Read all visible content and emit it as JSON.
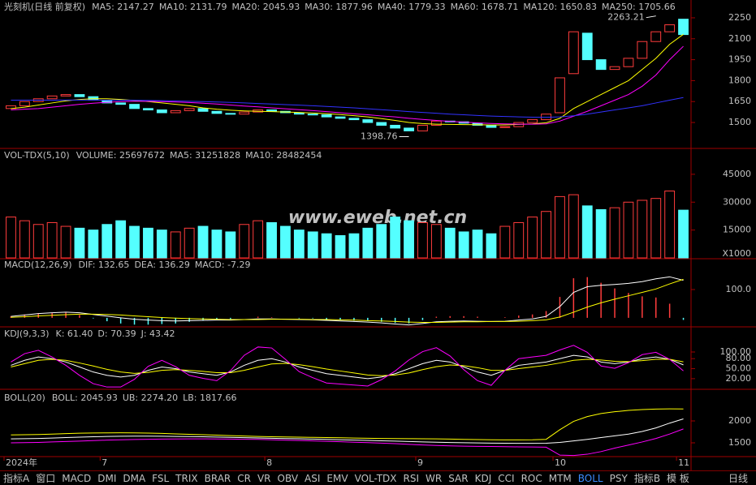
{
  "chart_data": [
    {
      "type": "candlestick",
      "title": "光刻机(日线 前复权)",
      "legend": [
        {
          "text": "MA5: 2147.27",
          "color": "#ffffff"
        },
        {
          "text": "MA10: 2131.79",
          "color": "#ffff00"
        },
        {
          "text": "MA20: 2045.93",
          "color": "#ff00ff"
        },
        {
          "text": "MA30: 1877.96",
          "color": "#00e600"
        },
        {
          "text": "MA40: 1779.33",
          "color": "#c0c0c0"
        },
        {
          "text": "MA60: 1678.71",
          "color": "#3232ff"
        },
        {
          "text": "MA120: 1650.83",
          "color": "#ffffff"
        },
        {
          "text": "MA250: 1705.66",
          "color": "#e6c04a"
        }
      ],
      "categories": [
        "2024年",
        null,
        null,
        null,
        null,
        null,
        null,
        "7",
        null,
        null,
        null,
        null,
        null,
        null,
        null,
        null,
        null,
        null,
        null,
        "8",
        null,
        null,
        null,
        null,
        null,
        null,
        null,
        null,
        null,
        null,
        "9",
        null,
        null,
        null,
        null,
        null,
        null,
        null,
        null,
        null,
        "10",
        null,
        null,
        null,
        null,
        null,
        null,
        null,
        null,
        "11"
      ],
      "open": [
        1600,
        1620,
        1650,
        1670,
        1690,
        1700,
        1685,
        1660,
        1640,
        1630,
        1600,
        1590,
        1570,
        1585,
        1600,
        1580,
        1565,
        1560,
        1575,
        1590,
        1580,
        1570,
        1560,
        1555,
        1540,
        1530,
        1520,
        1500,
        1480,
        1460,
        1440,
        1480,
        1510,
        1505,
        1495,
        1480,
        1465,
        1470,
        1500,
        1520,
        1570,
        1850,
        2140,
        1950,
        1880,
        1900,
        1960,
        2080,
        2150,
        2240
      ],
      "close": [
        1620,
        1650,
        1670,
        1690,
        1700,
        1685,
        1660,
        1640,
        1630,
        1600,
        1590,
        1570,
        1585,
        1600,
        1580,
        1565,
        1560,
        1575,
        1590,
        1580,
        1570,
        1560,
        1555,
        1540,
        1530,
        1520,
        1500,
        1480,
        1460,
        1440,
        1480,
        1510,
        1505,
        1495,
        1480,
        1465,
        1470,
        1500,
        1520,
        1560,
        1820,
        2150,
        1950,
        1880,
        1900,
        1960,
        2080,
        2150,
        2200,
        2130
      ],
      "up_color": "#ff3c3c",
      "down_color": "#54ffff",
      "series": [
        {
          "color": "#ffff00",
          "values": [
            1600,
            1610,
            1625,
            1640,
            1655,
            1665,
            1670,
            1670,
            1665,
            1658,
            1650,
            1640,
            1630,
            1620,
            1605,
            1595,
            1588,
            1583,
            1580,
            1578,
            1575,
            1572,
            1568,
            1563,
            1557,
            1549,
            1540,
            1528,
            1515,
            1500,
            1492,
            1488,
            1486,
            1485,
            1484,
            1482,
            1483,
            1486,
            1490,
            1498,
            1530,
            1600,
            1650,
            1700,
            1750,
            1800,
            1880,
            1960,
            2060,
            2131.79
          ]
        },
        {
          "color": "#ff00ff",
          "values": [
            1590,
            1595,
            1600,
            1610,
            1620,
            1630,
            1638,
            1645,
            1650,
            1652,
            1652,
            1650,
            1647,
            1643,
            1638,
            1632,
            1625,
            1618,
            1612,
            1605,
            1598,
            1592,
            1585,
            1578,
            1570,
            1562,
            1555,
            1547,
            1540,
            1530,
            1522,
            1515,
            1508,
            1502,
            1497,
            1493,
            1490,
            1488,
            1488,
            1490,
            1510,
            1545,
            1580,
            1620,
            1660,
            1700,
            1760,
            1840,
            1950,
            2045.93
          ]
        },
        {
          "color": "#3232ff",
          "values": [
            1660,
            1660,
            1660,
            1660,
            1661,
            1661,
            1661,
            1660,
            1660,
            1659,
            1658,
            1656,
            1654,
            1652,
            1650,
            1647,
            1644,
            1640,
            1636,
            1632,
            1628,
            1624,
            1620,
            1615,
            1610,
            1605,
            1598,
            1592,
            1585,
            1578,
            1572,
            1566,
            1560,
            1555,
            1550,
            1546,
            1543,
            1540,
            1538,
            1537,
            1540,
            1548,
            1560,
            1575,
            1590,
            1605,
            1620,
            1640,
            1660,
            1678.71
          ]
        }
      ],
      "annotations": [
        {
          "text": "2263.21",
          "x": 47,
          "y": 2263.21
        },
        {
          "text": "1398.76",
          "x": 29,
          "y": 1398.76
        }
      ],
      "ylim": [
        1320,
        2273
      ],
      "yticks": [
        2250,
        2100,
        1950,
        1800,
        1650,
        1500
      ]
    },
    {
      "type": "bar",
      "title": "VOL-TDX(5,10)",
      "legend": [
        {
          "text": "VOLUME: 25697672",
          "color": "#ffffff"
        },
        {
          "text": "MA5: 31251828",
          "color": "#ffffff"
        },
        {
          "text": "MA10: 28482454",
          "color": "#ffff00"
        }
      ],
      "values": [
        22000,
        20000,
        18000,
        19000,
        17000,
        16000,
        15000,
        18000,
        20000,
        17000,
        16000,
        15000,
        14000,
        16000,
        17000,
        15000,
        14000,
        18000,
        20000,
        19000,
        17000,
        15000,
        14000,
        13000,
        12000,
        13000,
        16000,
        18000,
        22000,
        20000,
        19000,
        18000,
        16000,
        14000,
        15000,
        13000,
        17000,
        19000,
        22000,
        25000,
        33000,
        34000,
        28000,
        26000,
        27000,
        30000,
        31000,
        32000,
        36000,
        25697.672
      ],
      "unit": "X1000",
      "watermark": "www.eweb.net.cn",
      "ylim": [
        0,
        51500
      ],
      "yticks": [
        45000,
        30000,
        15000
      ]
    },
    {
      "type": "line",
      "title": "MACD(12,26,9)",
      "legend": [
        {
          "text": "DIF: 132.65",
          "color": "#ffffff"
        },
        {
          "text": "DEA: 136.29",
          "color": "#ffff00"
        },
        {
          "text": "MACD: -7.29",
          "color": "#ff00ff"
        }
      ],
      "series": [
        {
          "style": "bar",
          "color": "#ff3c3c",
          "negative_color": "#54ffff",
          "values": [
            6,
            12,
            16,
            18,
            18,
            10,
            -2,
            -12,
            -20,
            -24,
            -24,
            -22,
            -20,
            -14,
            -10,
            -6,
            -4,
            0,
            4,
            2,
            0,
            -2,
            -2,
            -6,
            -8,
            -10,
            -10,
            -14,
            -18,
            -20,
            -8,
            4,
            6,
            6,
            4,
            0,
            2,
            8,
            12,
            24,
            74,
            140,
            144,
            124,
            104,
            88,
            76,
            72,
            50,
            -7.29
          ]
        },
        {
          "style": "line",
          "color": "#ffffff",
          "values": [
            5,
            10,
            15,
            18,
            20,
            18,
            12,
            6,
            0,
            -5,
            -8,
            -10,
            -11,
            -10,
            -9,
            -8,
            -8,
            -6,
            -4,
            -4,
            -5,
            -6,
            -7,
            -9,
            -11,
            -13,
            -15,
            -18,
            -22,
            -25,
            -20,
            -14,
            -12,
            -11,
            -12,
            -13,
            -12,
            -8,
            -4,
            5,
            40,
            90,
            110,
            115,
            118,
            122,
            128,
            138,
            145,
            132.65
          ]
        },
        {
          "style": "line",
          "color": "#ffff00",
          "values": [
            2,
            4,
            7,
            9,
            11,
            13,
            13,
            12,
            10,
            7,
            4,
            1,
            -1,
            -3,
            -4,
            -5,
            -6,
            -6,
            -6,
            -5,
            -5,
            -5,
            -6,
            -6,
            -7,
            -8,
            -10,
            -11,
            -13,
            -15,
            -16,
            -16,
            -15,
            -14,
            -14,
            -13,
            -13,
            -12,
            -10,
            -7,
            3,
            20,
            38,
            53,
            66,
            78,
            90,
            102,
            120,
            136.29
          ]
        }
      ],
      "ylim": [
        -29,
        166
      ],
      "yticks": [
        {
          "value": 100,
          "label": "100.0"
        }
      ]
    },
    {
      "type": "line",
      "title": "KDJ(9,3,3)",
      "legend": [
        {
          "text": "K: 61.40",
          "color": "#ffffff"
        },
        {
          "text": "D: 70.39",
          "color": "#ffff00"
        },
        {
          "text": "J: 43.42",
          "color": "#ff00ff"
        }
      ],
      "series": [
        {
          "style": "line",
          "color": "#ffffff",
          "values": [
            60,
            75,
            85,
            80,
            70,
            55,
            40,
            30,
            25,
            30,
            45,
            55,
            50,
            40,
            35,
            30,
            40,
            60,
            75,
            80,
            70,
            55,
            45,
            35,
            30,
            25,
            20,
            25,
            35,
            50,
            65,
            75,
            70,
            55,
            40,
            30,
            45,
            60,
            65,
            70,
            80,
            90,
            85,
            70,
            65,
            70,
            80,
            85,
            78,
            61.4
          ]
        },
        {
          "style": "line",
          "color": "#ffff00",
          "values": [
            55,
            65,
            75,
            78,
            75,
            67,
            58,
            48,
            40,
            36,
            39,
            45,
            47,
            45,
            42,
            38,
            38,
            45,
            55,
            64,
            66,
            62,
            56,
            49,
            43,
            37,
            31,
            29,
            31,
            37,
            47,
            56,
            61,
            59,
            53,
            45,
            45,
            50,
            55,
            60,
            67,
            75,
            78,
            76,
            72,
            71,
            74,
            78,
            78,
            70.39
          ]
        },
        {
          "style": "line",
          "color": "#ff00ff",
          "values": [
            70,
            95,
            105,
            85,
            60,
            30,
            5,
            -5,
            -5,
            18,
            57,
            75,
            56,
            30,
            21,
            14,
            44,
            90,
            115,
            112,
            78,
            41,
            23,
            7,
            4,
            1,
            -2,
            17,
            43,
            76,
            101,
            113,
            88,
            47,
            14,
            0,
            45,
            80,
            85,
            90,
            106,
            120,
            99,
            58,
            51,
            68,
            92,
            99,
            78,
            43.42
          ]
        }
      ],
      "ylim": [
        -7,
        134
      ],
      "yticks": [
        {
          "value": 100,
          "label": "100.00"
        },
        {
          "value": 80,
          "label": "80.00"
        },
        {
          "value": 50,
          "label": "50.00"
        },
        {
          "value": 20,
          "label": "20.00"
        }
      ]
    },
    {
      "type": "line",
      "title": "BOLL(20)",
      "legend": [
        {
          "text": "BOLL: 2045.93",
          "color": "#ffffff"
        },
        {
          "text": "UB: 2274.20",
          "color": "#ffff00"
        },
        {
          "text": "LB: 1817.66",
          "color": "#ff00ff"
        }
      ],
      "series": [
        {
          "style": "line",
          "color": "#ffffff",
          "values": [
            1590,
            1595,
            1600,
            1610,
            1620,
            1630,
            1638,
            1645,
            1650,
            1652,
            1652,
            1650,
            1647,
            1643,
            1638,
            1632,
            1625,
            1618,
            1612,
            1605,
            1598,
            1592,
            1585,
            1578,
            1570,
            1562,
            1555,
            1547,
            1540,
            1530,
            1522,
            1515,
            1508,
            1502,
            1497,
            1493,
            1490,
            1488,
            1488,
            1490,
            1510,
            1545,
            1580,
            1620,
            1660,
            1700,
            1760,
            1840,
            1950,
            2045.93
          ]
        },
        {
          "style": "line",
          "color": "#ffff00",
          "values": [
            1680,
            1685,
            1690,
            1700,
            1710,
            1720,
            1725,
            1728,
            1730,
            1728,
            1722,
            1715,
            1705,
            1695,
            1685,
            1675,
            1665,
            1655,
            1645,
            1640,
            1635,
            1630,
            1625,
            1620,
            1615,
            1610,
            1605,
            1600,
            1598,
            1595,
            1593,
            1590,
            1585,
            1580,
            1575,
            1570,
            1568,
            1568,
            1570,
            1580,
            1800,
            1990,
            2100,
            2170,
            2210,
            2240,
            2260,
            2270,
            2275,
            2274.2
          ]
        },
        {
          "style": "line",
          "color": "#ff00ff",
          "values": [
            1500,
            1505,
            1510,
            1520,
            1530,
            1540,
            1551,
            1562,
            1570,
            1576,
            1582,
            1585,
            1589,
            1591,
            1591,
            1589,
            1585,
            1581,
            1579,
            1570,
            1561,
            1554,
            1545,
            1536,
            1525,
            1514,
            1505,
            1494,
            1482,
            1465,
            1451,
            1440,
            1431,
            1424,
            1419,
            1416,
            1412,
            1408,
            1406,
            1400,
            1220,
            1210,
            1240,
            1300,
            1380,
            1450,
            1520,
            1600,
            1700,
            1817.66
          ]
        }
      ],
      "ylim": [
        1204,
        2389
      ],
      "yticks": [
        2000,
        1500
      ]
    }
  ],
  "toolbar": {
    "tabs": [
      "指标A",
      "窗口",
      "MACD",
      "DMI",
      "DMA",
      "FSL",
      "TRIX",
      "BRAR",
      "CR",
      "VR",
      "OBV",
      "ASI",
      "EMV",
      "VOL-TDX",
      "RSI",
      "WR",
      "SAR",
      "KDJ",
      "CCI",
      "ROC",
      "MTM",
      "BOLL",
      "PSY",
      "指标B",
      "模 板"
    ],
    "active": 21,
    "period": "日线"
  }
}
